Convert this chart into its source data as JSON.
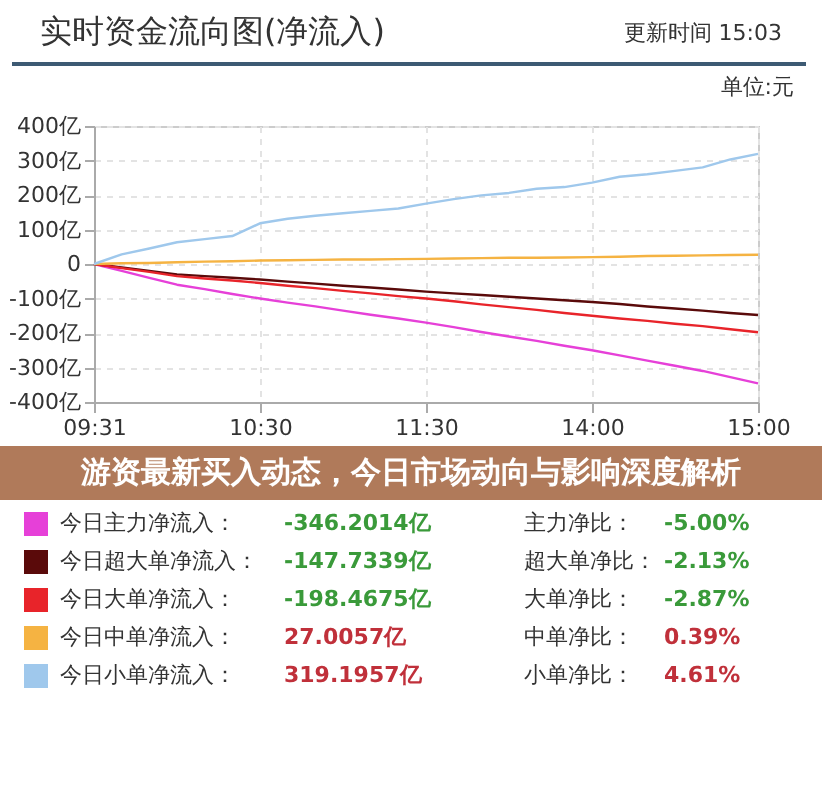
{
  "chart_data": {
    "type": "line",
    "title": "实时资金流向图(净流入)",
    "annotations": [
      "更新时间 15:03",
      "单位:元",
      "游资最新买入动态，今日市场动向与影响深度解析",
      "-346.2014亿",
      "主力净比：",
      "-5.00%",
      "-147.7339亿",
      "超大单净比：",
      "-2.13%",
      "-198.4675亿",
      "大单净比：",
      "-2.87%",
      "27.0057亿",
      "中单净比：",
      "0.39%",
      "319.1957亿",
      "小单净比：",
      "4.61%"
    ],
    "categories": [
      "09:31",
      null,
      null,
      null,
      null,
      null,
      "10:30",
      null,
      null,
      null,
      null,
      null,
      "11:30",
      null,
      null,
      null,
      null,
      null,
      "14:00",
      null,
      null,
      null,
      null,
      null,
      "15:00"
    ],
    "series": [
      {
        "name": "今日主力净流入：",
        "color": "#e640d8",
        "values": [
          0,
          -20,
          -40,
          -60,
          -73,
          -87,
          -100,
          -112,
          -123,
          -135,
          -147,
          -158,
          -170,
          -183,
          -197,
          -210,
          -223,
          -237,
          -250,
          -265,
          -280,
          -295,
          -310,
          -328,
          -346
        ]
      },
      {
        "name": "今日超大单净流入：",
        "color": "#5a0a0a",
        "values": [
          0,
          -10,
          -20,
          -30,
          -35,
          -40,
          -45,
          -51,
          -57,
          -63,
          -68,
          -74,
          -80,
          -85,
          -90,
          -95,
          -100,
          -105,
          -110,
          -116,
          -123,
          -129,
          -135,
          -142,
          -148
        ]
      },
      {
        "name": "今日大单净流入：",
        "color": "#e8242a",
        "values": [
          0,
          -12,
          -23,
          -35,
          -42,
          -48,
          -55,
          -63,
          -70,
          -78,
          -85,
          -93,
          -100,
          -108,
          -117,
          -125,
          -133,
          -142,
          -150,
          -158,
          -165,
          -173,
          -180,
          -189,
          -198
        ]
      },
      {
        "name": "今日中单净流入：",
        "color": "#f5b342",
        "values": [
          0,
          2,
          3,
          5,
          7,
          8,
          10,
          11,
          12,
          13,
          13,
          14,
          15,
          16,
          17,
          18,
          18,
          19,
          20,
          21,
          23,
          24,
          25,
          26,
          27
        ]
      },
      {
        "name": "今日小单净流入：",
        "color": "#9fc8ec",
        "values": [
          0,
          28,
          45,
          63,
          72,
          81,
          118,
          131,
          140,
          147,
          154,
          161,
          175,
          188,
          199,
          206,
          218,
          223,
          236,
          253,
          260,
          270,
          280,
          303,
          319
        ]
      }
    ],
    "ylim": [
      -400,
      400
    ],
    "yticks": [
      {
        "value": 400,
        "label": "400亿"
      },
      {
        "value": 300,
        "label": "300亿"
      },
      {
        "value": 200,
        "label": "200亿"
      },
      {
        "value": 100,
        "label": "100亿"
      },
      0,
      {
        "value": -100,
        "label": "-100亿"
      },
      {
        "value": -200,
        "label": "-200亿"
      },
      {
        "value": -300,
        "label": "-300亿"
      },
      {
        "value": -400,
        "label": "-400亿"
      }
    ],
    "grid": true,
    "legend": "bottom",
    "marker": "none",
    "line_style": "solid"
  }
}
